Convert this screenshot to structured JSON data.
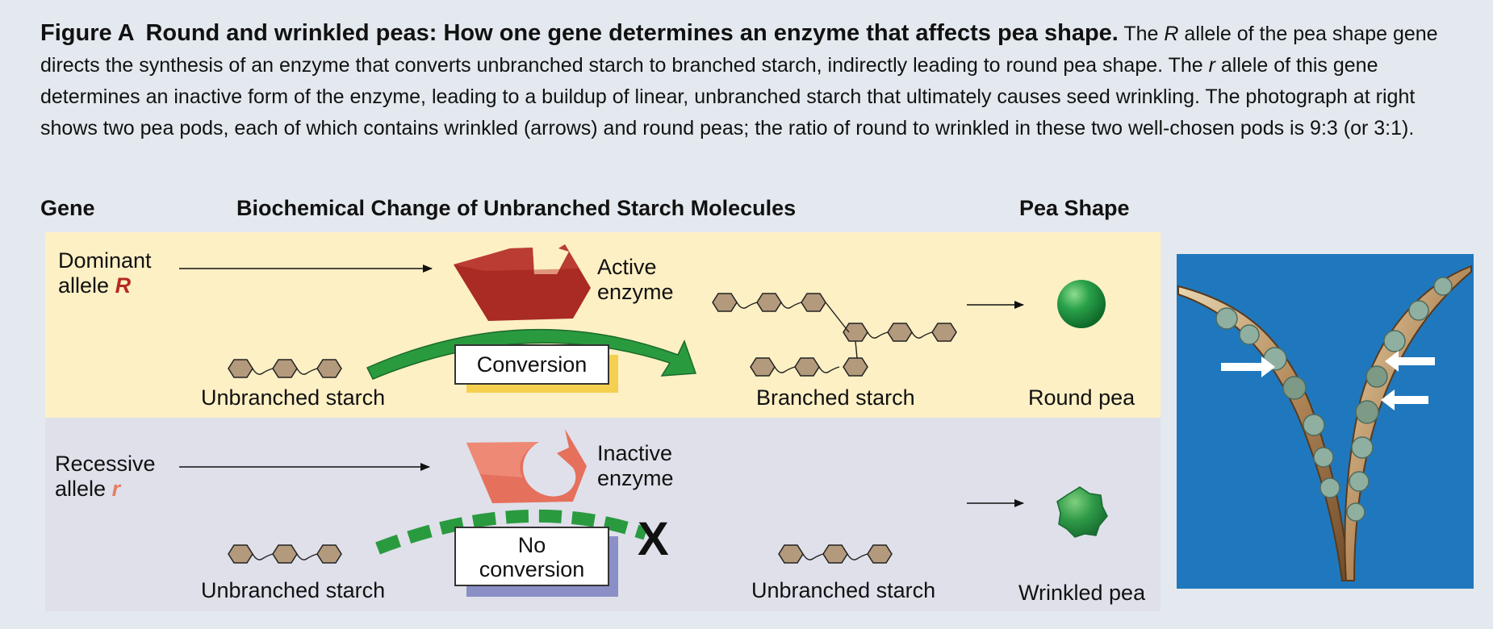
{
  "caption": {
    "figure_label": "Figure A",
    "title": "Round and wrinkled peas: How one gene determines an enzyme that affects pea shape.",
    "body_1": "The",
    "allele_R": "R",
    "body_2": "allele of the pea shape gene directs the synthesis of an enzyme that converts unbranched starch to branched starch, indirectly leading to round pea shape. The",
    "allele_r": "r",
    "body_3": "allele of this gene determines an inactive form of the enzyme, leading to a buildup of linear, unbranched starch that ultimately causes seed wrinkling. The photograph at right shows two pea pods, each of which contains wrinkled (arrows) and round peas; the ratio of round to wrinkled in these two well-chosen pods is 9:3 (or 3:1)."
  },
  "headers": {
    "gene": "Gene",
    "biochem": "Biochemical Change of Unbranched Starch Molecules",
    "pea_shape": "Pea Shape"
  },
  "dominant": {
    "allele_line1": "Dominant",
    "allele_word": "allele",
    "allele_symbol": "R",
    "enzyme_line1": "Active",
    "enzyme_line2": "enzyme",
    "substrate": "Unbranched starch",
    "process": "Conversion",
    "product": "Branched starch",
    "phenotype": "Round pea"
  },
  "recessive": {
    "allele_line1": "Recessive",
    "allele_word": "allele",
    "allele_symbol": "r",
    "enzyme_line1": "Inactive",
    "enzyme_line2": "enzyme",
    "substrate": "Unbranched starch",
    "process_line1": "No",
    "process_line2": "conversion",
    "block_mark": "X",
    "product": "Unbranched starch",
    "phenotype": "Wrinkled pea"
  },
  "colors": {
    "dominant_bg": "#fdf0c4",
    "recessive_bg": "#dfe0ea",
    "active_enzyme": "#a92b23",
    "inactive_enzyme": "#e5705c",
    "arrow_green": "#2a9a3f",
    "starch_hex": "#b39a7c",
    "round_pea": "#2aa14a",
    "photo_bg": "#1f78bd"
  }
}
